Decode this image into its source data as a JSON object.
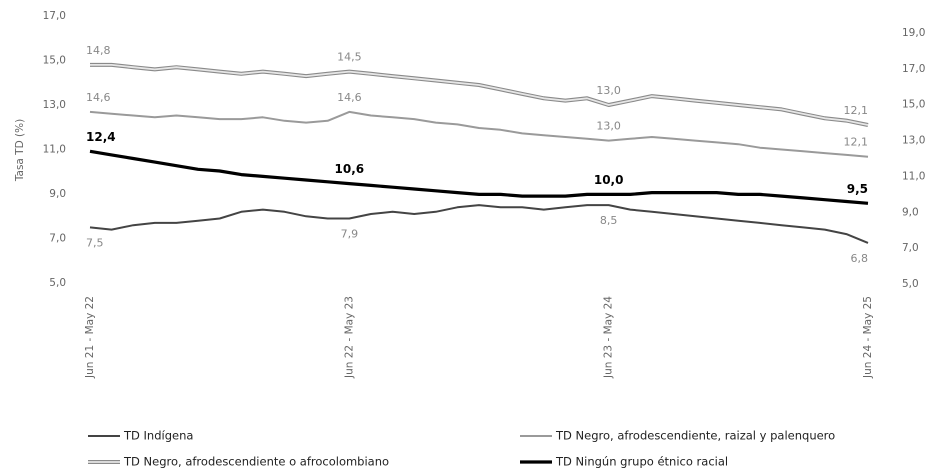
{
  "chart_data": {
    "type": "line",
    "y_label": "Tasa TD (%)",
    "categories": [
      "Jun 21 - May 22",
      null,
      null,
      null,
      null,
      null,
      null,
      null,
      null,
      null,
      null,
      null,
      "Jun 22 - May 23",
      null,
      null,
      null,
      null,
      null,
      null,
      null,
      null,
      null,
      null,
      null,
      "Jun 23 - May 24",
      null,
      null,
      null,
      null,
      null,
      null,
      null,
      null,
      null,
      null,
      null,
      "Jun 24 - May 25"
    ],
    "ylim": [
      5,
      17
    ],
    "yticks": [
      {
        "value": 5,
        "label": "5,0"
      },
      {
        "value": 7,
        "label": "7,0"
      },
      {
        "value": 9,
        "label": "9,0"
      },
      {
        "value": 11,
        "label": "11,0"
      },
      {
        "value": 13,
        "label": "13,0"
      },
      {
        "value": 15,
        "label": "15,0"
      },
      {
        "value": 17,
        "label": "17,0"
      }
    ],
    "y2lim": [
      5,
      19
    ],
    "y2ticks": [
      {
        "value": 5,
        "label": "5,0"
      },
      {
        "value": 7,
        "label": "7,0"
      },
      {
        "value": 9,
        "label": "9,0"
      },
      {
        "value": 11,
        "label": "11,0"
      },
      {
        "value": 13,
        "label": "13,0"
      },
      {
        "value": 15,
        "label": "15,0"
      },
      {
        "value": 17,
        "label": "17,0"
      },
      {
        "value": 19,
        "label": "19,0"
      }
    ],
    "series": [
      {
        "name": "TD Indígena",
        "color": "#444444",
        "line_style": "single",
        "label_side": "below",
        "values": [
          7.5,
          7.4,
          7.6,
          7.7,
          7.7,
          7.8,
          7.9,
          8.2,
          8.3,
          8.2,
          8.0,
          7.9,
          7.9,
          8.1,
          8.2,
          8.1,
          8.2,
          8.4,
          8.5,
          8.4,
          8.4,
          8.3,
          8.4,
          8.5,
          8.5,
          8.3,
          8.2,
          8.1,
          8.0,
          7.9,
          7.8,
          7.7,
          7.6,
          7.5,
          7.4,
          7.2,
          6.8
        ],
        "value_labels": [
          "7,5",
          null,
          null,
          null,
          null,
          null,
          null,
          null,
          null,
          null,
          null,
          null,
          "7,9",
          null,
          null,
          null,
          null,
          null,
          null,
          null,
          null,
          null,
          null,
          null,
          "8,5",
          null,
          null,
          null,
          null,
          null,
          null,
          null,
          null,
          null,
          null,
          null,
          "6,8"
        ]
      },
      {
        "name": "TD Negro, afrodescendiente, raizal y palenquero",
        "color": "#9a9a9a",
        "line_style": "single",
        "label_side": "above",
        "axis": "y2",
        "values": [
          14.6,
          14.5,
          14.4,
          14.3,
          14.4,
          14.3,
          14.2,
          14.2,
          14.3,
          14.1,
          14.0,
          14.1,
          14.6,
          14.4,
          14.3,
          14.2,
          14.0,
          13.9,
          13.7,
          13.6,
          13.4,
          13.3,
          13.2,
          13.1,
          13.0,
          13.1,
          13.2,
          13.1,
          13.0,
          12.9,
          12.8,
          12.6,
          12.5,
          12.4,
          12.3,
          12.2,
          12.1
        ],
        "value_labels": [
          "14,6",
          null,
          null,
          null,
          null,
          null,
          null,
          null,
          null,
          null,
          null,
          null,
          "14,6",
          null,
          null,
          null,
          null,
          null,
          null,
          null,
          null,
          null,
          null,
          null,
          "13,0",
          null,
          null,
          null,
          null,
          null,
          null,
          null,
          null,
          null,
          null,
          null,
          "12,1"
        ]
      },
      {
        "name": "TD Negro, afrodescendiente o afrocolombiano",
        "color": "#8a8a8a",
        "line_style": "double",
        "label_side": "above",
        "values": [
          14.8,
          14.8,
          14.7,
          14.6,
          14.7,
          14.6,
          14.5,
          14.4,
          14.5,
          14.4,
          14.3,
          14.4,
          14.5,
          14.4,
          14.3,
          14.2,
          14.1,
          14.0,
          13.9,
          13.7,
          13.5,
          13.3,
          13.2,
          13.3,
          13.0,
          13.2,
          13.4,
          13.3,
          13.2,
          13.1,
          13.0,
          12.9,
          12.8,
          12.6,
          12.4,
          12.3,
          12.1
        ],
        "value_labels": [
          "14,8",
          null,
          null,
          null,
          null,
          null,
          null,
          null,
          null,
          null,
          null,
          null,
          "14,5",
          null,
          null,
          null,
          null,
          null,
          null,
          null,
          null,
          null,
          null,
          null,
          "13,0",
          null,
          null,
          null,
          null,
          null,
          null,
          null,
          null,
          null,
          null,
          null,
          "12,1"
        ]
      },
      {
        "name": "TD Ningún grupo étnico racial",
        "color": "#000000",
        "line_style": "bold",
        "label_side": "above",
        "axis": "y2",
        "values": [
          12.4,
          12.2,
          12.0,
          11.8,
          11.6,
          11.4,
          11.3,
          11.1,
          11.0,
          10.9,
          10.8,
          10.7,
          10.6,
          10.5,
          10.4,
          10.3,
          10.2,
          10.1,
          10.0,
          10.0,
          9.9,
          9.9,
          9.9,
          10.0,
          10.0,
          10.0,
          10.1,
          10.1,
          10.1,
          10.1,
          10.0,
          10.0,
          9.9,
          9.8,
          9.7,
          9.6,
          9.5
        ],
        "value_labels": [
          "12,4",
          null,
          null,
          null,
          null,
          null,
          null,
          null,
          null,
          null,
          null,
          null,
          "10,6",
          null,
          null,
          null,
          null,
          null,
          null,
          null,
          null,
          null,
          null,
          null,
          "10,0",
          null,
          null,
          null,
          null,
          null,
          null,
          null,
          null,
          null,
          null,
          null,
          "9,5"
        ]
      }
    ]
  }
}
